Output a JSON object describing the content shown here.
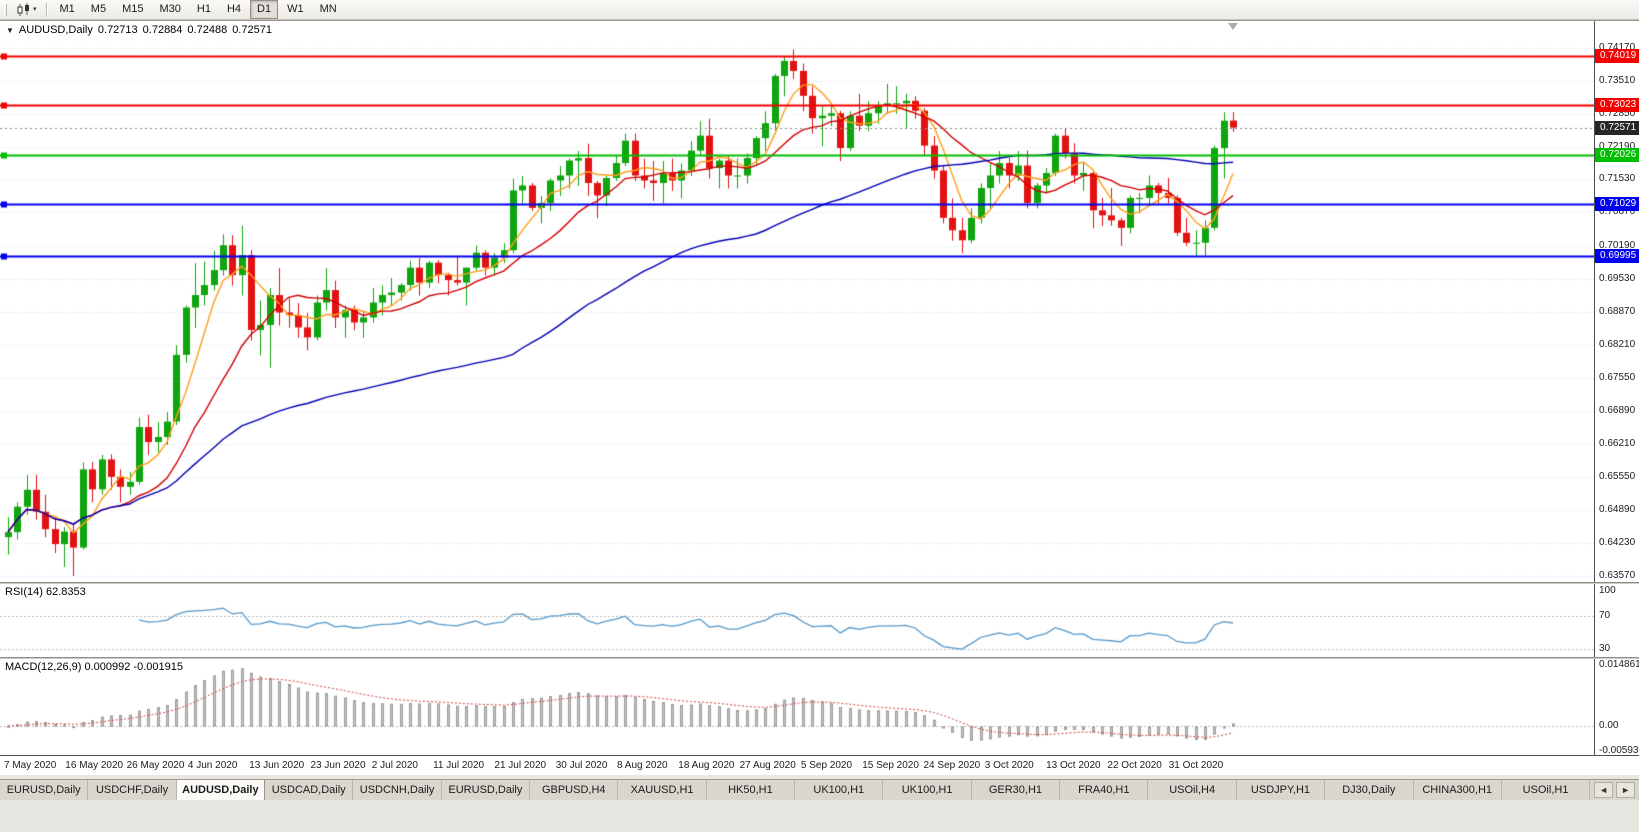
{
  "toolbar": {
    "timeframes": [
      "M1",
      "M5",
      "M15",
      "M30",
      "H1",
      "H4",
      "D1",
      "W1",
      "MN"
    ],
    "active_timeframe": "D1",
    "chart_dropdown_icon": "▾"
  },
  "chart": {
    "collapse_icon": "▼",
    "symbol_period": "AUDUSD,Daily",
    "quote": {
      "open": "0.72713",
      "high": "0.72884",
      "low": "0.72488",
      "close": "0.72571"
    },
    "price_axis_labels": [
      "0.74170",
      "0.73510",
      "0.72850",
      "0.72190",
      "0.71530",
      "0.70870",
      "0.70190",
      "0.69530",
      "0.68870",
      "0.68210",
      "0.67550",
      "0.66890",
      "0.66210",
      "0.65550",
      "0.64890",
      "0.64230",
      "0.63570"
    ],
    "levels": [
      {
        "price": 0.74019,
        "label": "0.74019",
        "color": "#F40000"
      },
      {
        "price": 0.73023,
        "label": "0.73023",
        "color": "#F40000"
      },
      {
        "price": 0.72026,
        "label": "0.72026",
        "color": "#00BE00"
      },
      {
        "price": 0.71029,
        "label": "0.71029",
        "color": "#0000F0"
      },
      {
        "price": 0.69995,
        "label": "0.69995",
        "color": "#0000F0"
      }
    ],
    "current_price": {
      "value": 0.72571,
      "label": "0.72571",
      "bg": "#262626"
    },
    "date_labels": [
      "7 May 2020",
      "16 May 2020",
      "26 May 2020",
      "4 Jun 2020",
      "13 Jun 2020",
      "23 Jun 2020",
      "2 Jul 2020",
      "11 Jul 2020",
      "21 Jul 2020",
      "30 Jul 2020",
      "8 Aug 2020",
      "18 Aug 2020",
      "27 Aug 2020",
      "5 Sep 2020",
      "15 Sep 2020",
      "24 Sep 2020",
      "3 Oct 2020",
      "13 Oct 2020",
      "22 Oct 2020",
      "31 Oct 2020"
    ]
  },
  "rsi": {
    "label": "RSI(14) 62.8353",
    "value": "62.8353",
    "axis_labels": [
      "100",
      "70",
      "30"
    ],
    "line_color": "#5599CC"
  },
  "macd": {
    "label": "MACD(12,26,9) 0.000992 -0.001915",
    "main_value": "0.000992",
    "signal_value": "-0.001915",
    "axis_labels": [
      "0.014861",
      "0.00",
      "-0.005938"
    ],
    "histogram_color": "#C6C6C6",
    "histogram_border": "#9E9E9E",
    "signal_color": "#D24444"
  },
  "tabs": {
    "items": [
      "EURUSD,Daily",
      "USDCHF,Daily",
      "AUDUSD,Daily",
      "USDCAD,Daily",
      "USDCNH,Daily",
      "EURUSD,Daily",
      "GBPUSD,H4",
      "XAUUSD,H1",
      "HK50,H1",
      "UK100,H1",
      "UK100,H1",
      "GER30,H1",
      "FRA40,H1",
      "USOil,H4",
      "USDJPY,H1",
      "DJ30,Daily",
      "CHINA300,H1",
      "USOil,H1"
    ],
    "active_index": 2,
    "scroll_left_icon": "◄",
    "scroll_right_icon": "►"
  },
  "chart_data": {
    "type": "candlestick",
    "symbol": "AUDUSD",
    "timeframe": "Daily",
    "up_color": "#0EA50E",
    "down_color": "#E31212",
    "price_top": 0.74712,
    "price_bottom": 0.63449,
    "ma_overlays": [
      {
        "period": 5,
        "color": "#FF9E1B"
      },
      {
        "period": 13,
        "color": "#D40000"
      },
      {
        "period": 55,
        "color": "#0000B4"
      }
    ],
    "rsi_period": 14,
    "rsi_levels": [
      70,
      30
    ],
    "macd": {
      "fast": 12,
      "slow": 26,
      "signal": 9,
      "axis_max": 0.014861,
      "axis_min": -0.005938
    },
    "ohlc": [
      [
        0.6435,
        0.6475,
        0.64,
        0.6445
      ],
      [
        0.6445,
        0.6505,
        0.643,
        0.6496
      ],
      [
        0.6496,
        0.656,
        0.648,
        0.653
      ],
      [
        0.653,
        0.656,
        0.647,
        0.6486
      ],
      [
        0.6486,
        0.652,
        0.6435,
        0.6451
      ],
      [
        0.6451,
        0.6475,
        0.6403,
        0.6421
      ],
      [
        0.6421,
        0.6455,
        0.6375,
        0.6446
      ],
      [
        0.6446,
        0.646,
        0.6357,
        0.6414
      ],
      [
        0.6414,
        0.6585,
        0.641,
        0.6571
      ],
      [
        0.6571,
        0.6586,
        0.6505,
        0.6531
      ],
      [
        0.6531,
        0.66,
        0.652,
        0.6591
      ],
      [
        0.6591,
        0.6601,
        0.653,
        0.6556
      ],
      [
        0.6556,
        0.6571,
        0.6505,
        0.6536
      ],
      [
        0.6536,
        0.6566,
        0.652,
        0.6546
      ],
      [
        0.6546,
        0.6675,
        0.654,
        0.6656
      ],
      [
        0.6656,
        0.6681,
        0.66,
        0.6626
      ],
      [
        0.6626,
        0.6666,
        0.6605,
        0.6636
      ],
      [
        0.6636,
        0.6686,
        0.662,
        0.6667
      ],
      [
        0.6667,
        0.682,
        0.666,
        0.6801
      ],
      [
        0.6801,
        0.69,
        0.6785,
        0.6896
      ],
      [
        0.6896,
        0.6985,
        0.6855,
        0.6921
      ],
      [
        0.6921,
        0.6988,
        0.69,
        0.6941
      ],
      [
        0.6941,
        0.701,
        0.693,
        0.6971
      ],
      [
        0.6971,
        0.7043,
        0.696,
        0.7021
      ],
      [
        0.7021,
        0.7041,
        0.694,
        0.6961
      ],
      [
        0.6961,
        0.706,
        0.692,
        0.7001
      ],
      [
        0.7001,
        0.7011,
        0.683,
        0.6851
      ],
      [
        0.6851,
        0.691,
        0.68,
        0.6861
      ],
      [
        0.6861,
        0.6935,
        0.6775,
        0.6921
      ],
      [
        0.6921,
        0.6975,
        0.686,
        0.6886
      ],
      [
        0.6886,
        0.6915,
        0.6855,
        0.6881
      ],
      [
        0.6881,
        0.6905,
        0.6835,
        0.6856
      ],
      [
        0.6856,
        0.6885,
        0.681,
        0.6836
      ],
      [
        0.6836,
        0.692,
        0.683,
        0.6906
      ],
      [
        0.6906,
        0.6975,
        0.689,
        0.6931
      ],
      [
        0.6931,
        0.695,
        0.6855,
        0.6876
      ],
      [
        0.6876,
        0.69,
        0.6835,
        0.6891
      ],
      [
        0.6891,
        0.69,
        0.685,
        0.6866
      ],
      [
        0.6866,
        0.689,
        0.6835,
        0.6876
      ],
      [
        0.6876,
        0.6935,
        0.6865,
        0.6906
      ],
      [
        0.6906,
        0.694,
        0.688,
        0.6921
      ],
      [
        0.6921,
        0.6955,
        0.69,
        0.6926
      ],
      [
        0.6926,
        0.6945,
        0.691,
        0.6941
      ],
      [
        0.6941,
        0.699,
        0.693,
        0.6976
      ],
      [
        0.6976,
        0.6995,
        0.692,
        0.6946
      ],
      [
        0.6946,
        0.699,
        0.6935,
        0.6986
      ],
      [
        0.6986,
        0.6991,
        0.6945,
        0.6961
      ],
      [
        0.6961,
        0.6966,
        0.692,
        0.6951
      ],
      [
        0.6951,
        0.7,
        0.694,
        0.6946
      ],
      [
        0.6946,
        0.6976,
        0.69,
        0.6976
      ],
      [
        0.6976,
        0.702,
        0.697,
        0.7006
      ],
      [
        0.7006,
        0.7011,
        0.696,
        0.6976
      ],
      [
        0.6976,
        0.7005,
        0.696,
        0.6996
      ],
      [
        0.6996,
        0.7025,
        0.6985,
        0.7011
      ],
      [
        0.7011,
        0.7155,
        0.7005,
        0.7131
      ],
      [
        0.7131,
        0.716,
        0.7105,
        0.7141
      ],
      [
        0.7141,
        0.7146,
        0.709,
        0.7096
      ],
      [
        0.7096,
        0.712,
        0.7065,
        0.7106
      ],
      [
        0.7106,
        0.7155,
        0.709,
        0.7151
      ],
      [
        0.7151,
        0.718,
        0.712,
        0.7161
      ],
      [
        0.7161,
        0.7195,
        0.7135,
        0.7191
      ],
      [
        0.7191,
        0.721,
        0.714,
        0.7196
      ],
      [
        0.7196,
        0.7225,
        0.712,
        0.7146
      ],
      [
        0.7146,
        0.715,
        0.7075,
        0.7121
      ],
      [
        0.7121,
        0.716,
        0.71,
        0.7156
      ],
      [
        0.7156,
        0.72,
        0.715,
        0.7186
      ],
      [
        0.7186,
        0.7245,
        0.718,
        0.7231
      ],
      [
        0.7231,
        0.7245,
        0.715,
        0.7161
      ],
      [
        0.7161,
        0.7195,
        0.7135,
        0.7151
      ],
      [
        0.7151,
        0.719,
        0.711,
        0.7146
      ],
      [
        0.7146,
        0.719,
        0.7105,
        0.7166
      ],
      [
        0.7166,
        0.7195,
        0.713,
        0.7151
      ],
      [
        0.7151,
        0.7185,
        0.7115,
        0.7171
      ],
      [
        0.7171,
        0.723,
        0.716,
        0.7211
      ],
      [
        0.7211,
        0.727,
        0.72,
        0.7241
      ],
      [
        0.7241,
        0.7275,
        0.7155,
        0.7176
      ],
      [
        0.7176,
        0.7195,
        0.7135,
        0.7191
      ],
      [
        0.7191,
        0.72,
        0.7135,
        0.7161
      ],
      [
        0.7161,
        0.7195,
        0.7135,
        0.7161
      ],
      [
        0.7161,
        0.7205,
        0.7145,
        0.7196
      ],
      [
        0.7196,
        0.724,
        0.718,
        0.7236
      ],
      [
        0.7236,
        0.729,
        0.721,
        0.7266
      ],
      [
        0.7266,
        0.7365,
        0.725,
        0.7361
      ],
      [
        0.7361,
        0.74,
        0.732,
        0.7391
      ],
      [
        0.7391,
        0.7414,
        0.7355,
        0.7371
      ],
      [
        0.7371,
        0.7386,
        0.729,
        0.7321
      ],
      [
        0.7321,
        0.734,
        0.7245,
        0.7276
      ],
      [
        0.7276,
        0.73,
        0.722,
        0.7281
      ],
      [
        0.7281,
        0.73,
        0.726,
        0.7286
      ],
      [
        0.7286,
        0.7291,
        0.719,
        0.7216
      ],
      [
        0.7216,
        0.729,
        0.721,
        0.7281
      ],
      [
        0.7281,
        0.7325,
        0.725,
        0.7261
      ],
      [
        0.7261,
        0.731,
        0.725,
        0.7286
      ],
      [
        0.7286,
        0.731,
        0.7265,
        0.7301
      ],
      [
        0.7301,
        0.7345,
        0.7285,
        0.7306
      ],
      [
        0.7306,
        0.734,
        0.7285,
        0.7306
      ],
      [
        0.7306,
        0.7325,
        0.7255,
        0.7311
      ],
      [
        0.7311,
        0.732,
        0.7275,
        0.7291
      ],
      [
        0.7291,
        0.7296,
        0.72,
        0.7221
      ],
      [
        0.7221,
        0.724,
        0.7155,
        0.7171
      ],
      [
        0.7171,
        0.7181,
        0.7065,
        0.7076
      ],
      [
        0.7076,
        0.7115,
        0.703,
        0.7051
      ],
      [
        0.7051,
        0.7076,
        0.7005,
        0.7031
      ],
      [
        0.7031,
        0.7095,
        0.7025,
        0.7076
      ],
      [
        0.7076,
        0.7145,
        0.7065,
        0.7136
      ],
      [
        0.7136,
        0.7185,
        0.7095,
        0.7161
      ],
      [
        0.7161,
        0.721,
        0.7145,
        0.7186
      ],
      [
        0.7186,
        0.7196,
        0.7135,
        0.7161
      ],
      [
        0.7161,
        0.721,
        0.715,
        0.7181
      ],
      [
        0.7181,
        0.7211,
        0.7095,
        0.7106
      ],
      [
        0.7106,
        0.7146,
        0.7095,
        0.7141
      ],
      [
        0.7141,
        0.7176,
        0.7125,
        0.7166
      ],
      [
        0.7166,
        0.7245,
        0.716,
        0.7241
      ],
      [
        0.7241,
        0.7256,
        0.7195,
        0.7206
      ],
      [
        0.7206,
        0.7226,
        0.7145,
        0.7161
      ],
      [
        0.7161,
        0.7186,
        0.713,
        0.7166
      ],
      [
        0.7166,
        0.7171,
        0.7055,
        0.7091
      ],
      [
        0.7091,
        0.7116,
        0.706,
        0.7081
      ],
      [
        0.7081,
        0.7136,
        0.706,
        0.7071
      ],
      [
        0.7071,
        0.7076,
        0.702,
        0.7056
      ],
      [
        0.7056,
        0.7121,
        0.7045,
        0.7116
      ],
      [
        0.7116,
        0.7126,
        0.7085,
        0.7116
      ],
      [
        0.7116,
        0.7161,
        0.71,
        0.7141
      ],
      [
        0.7141,
        0.7146,
        0.7105,
        0.7126
      ],
      [
        0.7126,
        0.7156,
        0.7105,
        0.7116
      ],
      [
        0.7116,
        0.7121,
        0.704,
        0.7046
      ],
      [
        0.7046,
        0.7076,
        0.702,
        0.7026
      ],
      [
        0.7026,
        0.7051,
        0.6999,
        0.7026
      ],
      [
        0.7026,
        0.7071,
        0.7,
        0.7056
      ],
      [
        0.7056,
        0.7221,
        0.7051,
        0.7216
      ],
      [
        0.7216,
        0.7288,
        0.7155,
        0.7271
      ],
      [
        0.72713,
        0.72884,
        0.72488,
        0.72571
      ]
    ]
  }
}
